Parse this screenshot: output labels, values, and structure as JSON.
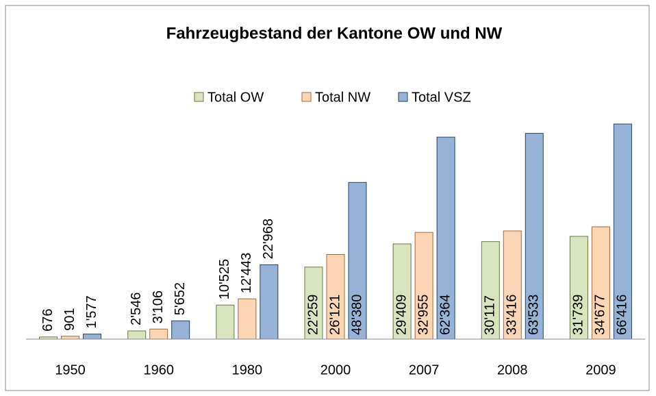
{
  "chart_data": {
    "type": "bar",
    "title": "Fahrzeugbestand der Kantone OW und NW",
    "categories": [
      "1950",
      "1960",
      "1980",
      "2000",
      "2007",
      "2008",
      "2009"
    ],
    "series": [
      {
        "name": "Total OW",
        "color": "#d7e4bd",
        "values": [
          676,
          2546,
          10525,
          22259,
          29409,
          30117,
          31739
        ],
        "value_labels": [
          "676",
          "2'546",
          "10'525",
          "22'259",
          "29'409",
          "30'117",
          "31'739"
        ]
      },
      {
        "name": "Total NW",
        "color": "#fcd5b5",
        "values": [
          901,
          3106,
          12443,
          26121,
          32955,
          33416,
          34677
        ],
        "value_labels": [
          "901",
          "3'106",
          "12'443",
          "26'121",
          "32'955",
          "33'416",
          "34'677"
        ]
      },
      {
        "name": "Total VSZ",
        "color": "#95b3d7",
        "values": [
          1577,
          5652,
          22968,
          48380,
          62364,
          63533,
          66416
        ],
        "value_labels": [
          "1'577",
          "5'652",
          "22'968",
          "48'380",
          "62'364",
          "63'533",
          "66'416"
        ]
      }
    ],
    "legend": "top"
  }
}
